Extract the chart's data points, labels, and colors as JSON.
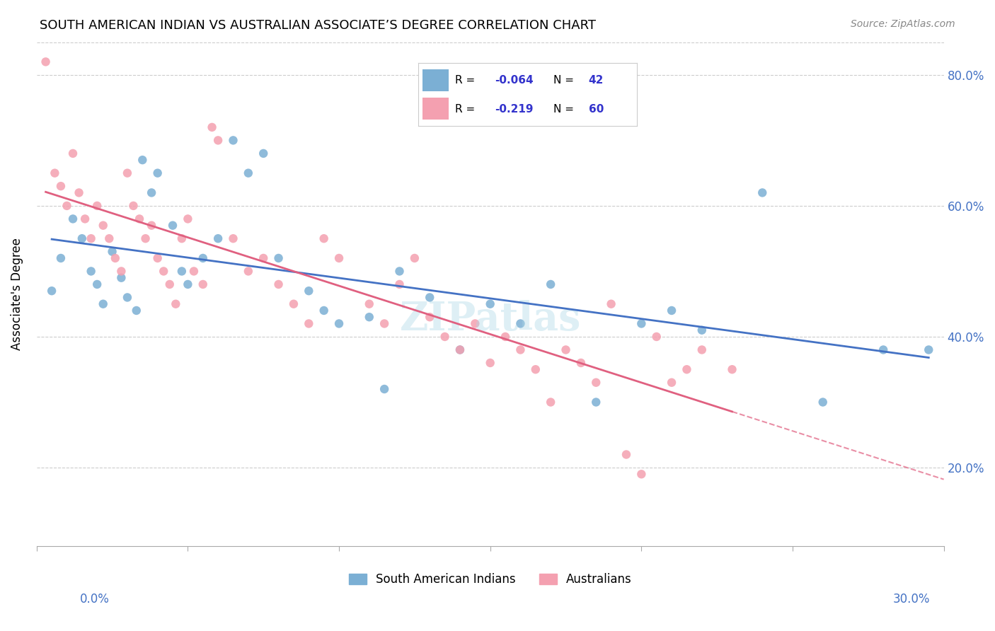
{
  "title": "SOUTH AMERICAN INDIAN VS AUSTRALIAN ASSOCIATE’S DEGREE CORRELATION CHART",
  "source": "Source: ZipAtlas.com",
  "ylabel": "Associate's Degree",
  "y_ticks": [
    0.2,
    0.4,
    0.6,
    0.8
  ],
  "y_tick_labels": [
    "20.0%",
    "40.0%",
    "60.0%",
    "80.0%"
  ],
  "x_ticks": [
    0.0,
    0.05,
    0.1,
    0.15,
    0.2,
    0.25,
    0.3
  ],
  "xlim": [
    0.0,
    0.3
  ],
  "ylim": [
    0.08,
    0.85
  ],
  "blue_R": -0.064,
  "blue_N": 42,
  "pink_R": -0.219,
  "pink_N": 60,
  "blue_color": "#7bafd4",
  "pink_color": "#f4a0b0",
  "blue_line_color": "#4472c4",
  "pink_line_color": "#e06080",
  "legend_R_color": "#3333cc",
  "blue_scatter_x": [
    0.005,
    0.008,
    0.012,
    0.015,
    0.018,
    0.02,
    0.022,
    0.025,
    0.028,
    0.03,
    0.033,
    0.035,
    0.038,
    0.04,
    0.045,
    0.048,
    0.05,
    0.055,
    0.06,
    0.065,
    0.07,
    0.075,
    0.08,
    0.09,
    0.095,
    0.1,
    0.11,
    0.115,
    0.12,
    0.13,
    0.14,
    0.15,
    0.16,
    0.17,
    0.185,
    0.2,
    0.21,
    0.22,
    0.24,
    0.26,
    0.28,
    0.295
  ],
  "blue_scatter_y": [
    0.47,
    0.52,
    0.58,
    0.55,
    0.5,
    0.48,
    0.45,
    0.53,
    0.49,
    0.46,
    0.44,
    0.67,
    0.62,
    0.65,
    0.57,
    0.5,
    0.48,
    0.52,
    0.55,
    0.7,
    0.65,
    0.68,
    0.52,
    0.47,
    0.44,
    0.42,
    0.43,
    0.32,
    0.5,
    0.46,
    0.38,
    0.45,
    0.42,
    0.48,
    0.3,
    0.42,
    0.44,
    0.41,
    0.62,
    0.3,
    0.38,
    0.38
  ],
  "pink_scatter_x": [
    0.003,
    0.006,
    0.008,
    0.01,
    0.012,
    0.014,
    0.016,
    0.018,
    0.02,
    0.022,
    0.024,
    0.026,
    0.028,
    0.03,
    0.032,
    0.034,
    0.036,
    0.038,
    0.04,
    0.042,
    0.044,
    0.046,
    0.048,
    0.05,
    0.052,
    0.055,
    0.058,
    0.06,
    0.065,
    0.07,
    0.075,
    0.08,
    0.085,
    0.09,
    0.095,
    0.1,
    0.11,
    0.115,
    0.12,
    0.125,
    0.13,
    0.135,
    0.14,
    0.145,
    0.15,
    0.155,
    0.16,
    0.165,
    0.17,
    0.175,
    0.18,
    0.185,
    0.19,
    0.195,
    0.2,
    0.205,
    0.21,
    0.215,
    0.22,
    0.23
  ],
  "pink_scatter_y": [
    0.82,
    0.65,
    0.63,
    0.6,
    0.68,
    0.62,
    0.58,
    0.55,
    0.6,
    0.57,
    0.55,
    0.52,
    0.5,
    0.65,
    0.6,
    0.58,
    0.55,
    0.57,
    0.52,
    0.5,
    0.48,
    0.45,
    0.55,
    0.58,
    0.5,
    0.48,
    0.72,
    0.7,
    0.55,
    0.5,
    0.52,
    0.48,
    0.45,
    0.42,
    0.55,
    0.52,
    0.45,
    0.42,
    0.48,
    0.52,
    0.43,
    0.4,
    0.38,
    0.42,
    0.36,
    0.4,
    0.38,
    0.35,
    0.3,
    0.38,
    0.36,
    0.33,
    0.45,
    0.22,
    0.19,
    0.4,
    0.33,
    0.35,
    0.38,
    0.35
  ],
  "watermark": "ZIPatlas",
  "background_color": "#ffffff",
  "grid_color": "#cccccc"
}
